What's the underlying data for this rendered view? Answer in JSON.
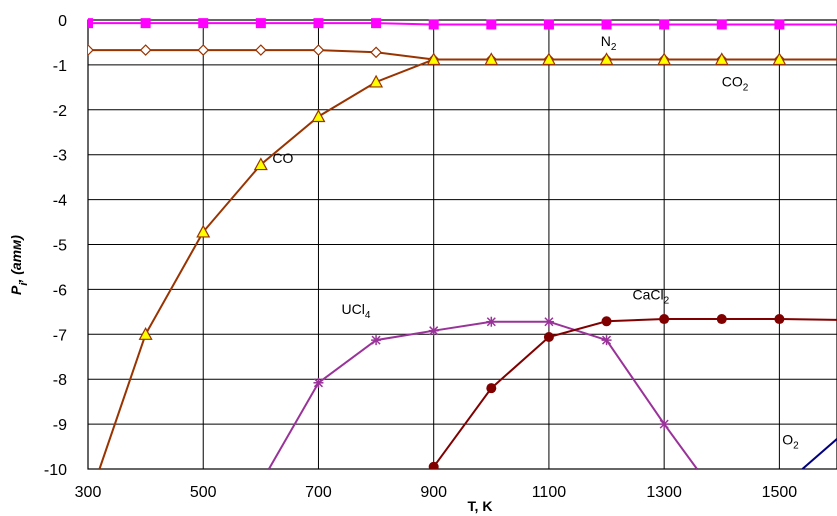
{
  "chart_data": {
    "type": "line",
    "title": "",
    "xlabel": "T, K",
    "ylabel": "Pi, (атм)",
    "xlim": [
      300,
      1600
    ],
    "ylim": [
      -10,
      0
    ],
    "xticks": [
      "300",
      "500",
      "700",
      "900",
      "1100",
      "1300",
      "1500"
    ],
    "yticks": [
      "0",
      "-1",
      "-2",
      "-3",
      "-4",
      "-5",
      "-6",
      "-7",
      "-8",
      "-9",
      "-10"
    ],
    "grid": true,
    "series": [
      {
        "name": "N2",
        "color": "#ff00ff",
        "marker": "square",
        "x": [
          300,
          400,
          500,
          600,
          700,
          800,
          900,
          1000,
          1100,
          1200,
          1300,
          1400,
          1500,
          1600
        ],
        "y": [
          -0.07,
          -0.07,
          -0.07,
          -0.07,
          -0.07,
          -0.07,
          -0.1,
          -0.1,
          -0.1,
          -0.1,
          -0.1,
          -0.1,
          -0.1,
          -0.1
        ]
      },
      {
        "name": "CO2",
        "color": "#993300",
        "marker": "diamond",
        "x": [
          300,
          400,
          500,
          600,
          700,
          800,
          900,
          1000,
          1100,
          1200,
          1300,
          1400,
          1500,
          1600
        ],
        "y": [
          -0.67,
          -0.67,
          -0.67,
          -0.67,
          -0.67,
          -0.72,
          -0.88,
          -0.88,
          -0.88,
          -0.88,
          -0.88,
          -0.88,
          -0.88,
          -0.88
        ]
      },
      {
        "name": "CO",
        "color": "#993300",
        "marker": "triangle",
        "x": [
          320,
          400,
          500,
          600,
          700,
          800,
          900,
          1000,
          1100,
          1200,
          1300,
          1400,
          1500,
          1600
        ],
        "y": [
          -10,
          -7.0,
          -4.72,
          -3.22,
          -2.15,
          -1.38,
          -0.88,
          -0.88,
          -0.88,
          -0.88,
          -0.88,
          -0.88,
          -0.88,
          -0.88
        ]
      },
      {
        "name": "UCl4",
        "color": "#993399",
        "marker": "star",
        "x": [
          614,
          700,
          800,
          900,
          1000,
          1100,
          1200,
          1300,
          1357
        ],
        "y": [
          -10,
          -8.08,
          -7.13,
          -6.92,
          -6.72,
          -6.72,
          -7.13,
          -9.0,
          -10
        ]
      },
      {
        "name": "CaCl2",
        "color": "#800000",
        "marker": "circle",
        "x": [
          900,
          1000,
          1100,
          1200,
          1300,
          1400,
          1500,
          1600
        ],
        "y": [
          -9.95,
          -8.2,
          -7.06,
          -6.71,
          -6.66,
          -6.66,
          -6.66,
          -6.68
        ]
      },
      {
        "name": "O2",
        "color": "#000080",
        "marker": "diamond",
        "x": [
          1540,
          1600
        ],
        "y": [
          -10,
          -9.33
        ]
      }
    ],
    "annotations": [
      {
        "text": "N",
        "sub": "2",
        "x": 1190,
        "y": -0.58
      },
      {
        "text": "CO",
        "sub": "2",
        "x": 1400,
        "y": -1.48
      },
      {
        "text": "CO",
        "sub": "",
        "x": 620,
        "y": -3.18
      },
      {
        "text": "UCl",
        "sub": "4",
        "x": 740,
        "y": -6.55
      },
      {
        "text": "CaCl",
        "sub": "2",
        "x": 1245,
        "y": -6.22
      },
      {
        "text": "O",
        "sub": "2",
        "x": 1505,
        "y": -9.45
      }
    ]
  }
}
